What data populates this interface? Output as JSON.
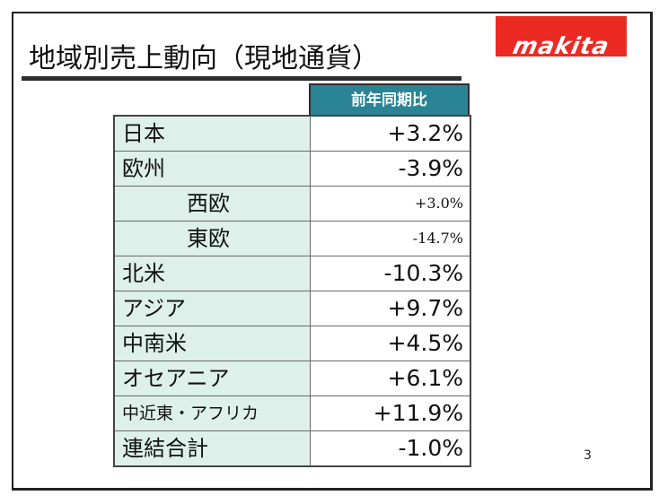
{
  "slide": {
    "title": "地域別売上動向（現地通貨）",
    "logo_text": "makita",
    "page_number": "3",
    "brand_color": "#ec2a24",
    "header_color": "#2a8495",
    "label_cell_color": "#ddf0ea"
  },
  "table": {
    "header": "前年同期比",
    "rows": [
      {
        "label": "日本",
        "value": "+3.2%"
      },
      {
        "label": "欧州",
        "value": "-3.9%"
      },
      {
        "label": "西欧",
        "value": "+3.0%"
      },
      {
        "label": "東欧",
        "value": "-14.7%"
      },
      {
        "label": "北米",
        "value": "-10.3%"
      },
      {
        "label": "アジア",
        "value": "+9.7%"
      },
      {
        "label": "中南米",
        "value": "+4.5%"
      },
      {
        "label": "オセアニア",
        "value": "+6.1%"
      },
      {
        "label": "中近東・アフリカ",
        "value": "+11.9%"
      },
      {
        "label": "連結合計",
        "value": "-1.0%"
      }
    ]
  }
}
